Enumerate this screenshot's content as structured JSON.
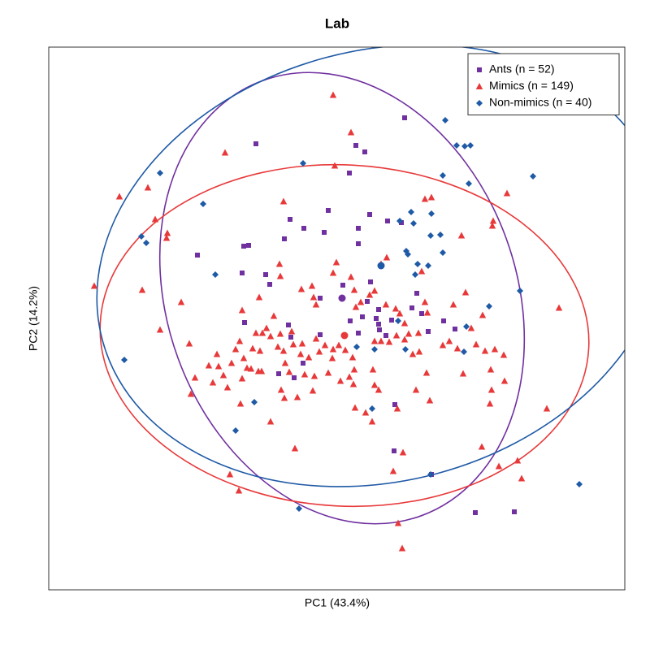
{
  "chart_data": {
    "type": "scatter",
    "title": "Lab",
    "x_label": "PC1 (43.4%)",
    "y_label": "PC2 (14.2%)",
    "xlim": [
      0,
      709
    ],
    "ylim": [
      0,
      668
    ],
    "legend": "top-right",
    "series": [
      {
        "name": "Ants (n = 52)",
        "color": "#7030a0",
        "marker": "square",
        "x": [
          255,
          389,
          370,
          378,
          297,
          290,
          240,
          246,
          183,
          238,
          267,
          272,
          314,
          339,
          344,
          395,
          381,
          381,
          417,
          434,
          438,
          396,
          362,
          392,
          334,
          406,
          406,
          422,
          447,
          371,
          381,
          334,
          407,
          500,
          467,
          295,
          298,
          241,
          313,
          302,
          283,
          425,
          426,
          471,
          525,
          573,
          486,
          415,
          403,
          386,
          459,
          453
        ],
        "y": [
          549,
          539,
          513,
          547,
          456,
          432,
          423,
          424,
          412,
          390,
          388,
          376,
          445,
          440,
          467,
          462,
          445,
          426,
          454,
          452,
          581,
          379,
          375,
          355,
          359,
          345,
          327,
          332,
          347,
          331,
          316,
          314,
          320,
          321,
          318,
          326,
          311,
          329,
          279,
          261,
          266,
          171,
          228,
          142,
          95,
          96,
          331,
          313,
          334,
          336,
          340,
          365
        ],
        "centroid": {
          "x": 361,
          "y": 359
        },
        "ellipse": {
          "rx": 215,
          "ry": 285,
          "angle": 20
        }
      },
      {
        "name": "Mimics (n = 149)",
        "color": "#e8393a",
        "marker": "triangle",
        "x": [
          350,
          372,
          217,
          352,
          122,
          87,
          131,
          146,
          145,
          56,
          115,
          163,
          137,
          173,
          175,
          180,
          197,
          202,
          220,
          225,
          230,
          235,
          240,
          238,
          244,
          249,
          258,
          262,
          260,
          268,
          273,
          282,
          285,
          277,
          259,
          285,
          284,
          289,
          311,
          326,
          329,
          324,
          350,
          354,
          372,
          376,
          378,
          384,
          395,
          401,
          416,
          409,
          415,
          427,
          432,
          438,
          443,
          455,
          463,
          466,
          459,
          463,
          471,
          508,
          513,
          498,
          534,
          547,
          564,
          546,
          628,
          549,
          560,
          544,
          561,
          545,
          543,
          613,
          533,
          577,
          582,
          554,
          223,
          234,
          303,
          273,
          290,
          286,
          296,
          315,
          325,
          327,
          320,
          333,
          340,
          350,
          357,
          365,
          374,
          376,
          370,
          375,
          377,
          390,
          398,
          406,
          401,
          399,
          401,
          409,
          419,
          428,
          438,
          448,
          456,
          465,
          469,
          452,
          429,
          436,
          424,
          430,
          435,
          359,
          349,
          344,
          329,
          312,
          301,
          310,
          299,
          289,
          291,
          207,
          209,
          236,
          215,
          251,
          255,
          263,
          306,
          238,
          485,
          493,
          520,
          503,
          526,
          537,
          510
        ],
        "y": [
          609,
          563,
          538,
          522,
          495,
          484,
          456,
          439,
          433,
          374,
          369,
          354,
          320,
          303,
          241,
          261,
          276,
          255,
          249,
          279,
          296,
          306,
          285,
          260,
          273,
          272,
          269,
          269,
          294,
          322,
          312,
          299,
          315,
          337,
          360,
          386,
          401,
          478,
          370,
          360,
          351,
          374,
          390,
          403,
          385,
          369,
          348,
          354,
          363,
          368,
          409,
          401,
          351,
          346,
          340,
          328,
          315,
          316,
          354,
          341,
          392,
          481,
          483,
          436,
          366,
          351,
          338,
          454,
          488,
          448,
          347,
          296,
          289,
          271,
          257,
          246,
          229,
          223,
          176,
          159,
          137,
          152,
          142,
          122,
          174,
          207,
          236,
          246,
          268,
          265,
          245,
          263,
          286,
          293,
          301,
          296,
          301,
          295,
          286,
          271,
          262,
          253,
          224,
          218,
          207,
          246,
          252,
          271,
          306,
          306,
          305,
          313,
          308,
          290,
          293,
          267,
          233,
          246,
          223,
          169,
          146,
          82,
          51,
          257,
          285,
          267,
          309,
          303,
          302,
          290,
          318,
          294,
          279,
          290,
          275,
          229,
          264,
          297,
          316,
          316,
          237,
          344,
          301,
          306,
          322,
          297,
          302,
          294,
          266
        ],
        "centroid": {
          "x": 364,
          "y": 313
        },
        "ellipse": {
          "rx": 301,
          "ry": 210,
          "angle": -3
        }
      },
      {
        "name": "Non-mimics (n = 40)",
        "color": "#1f5aa6",
        "marker": "diamond",
        "x": [
          488,
          502,
          512,
          519,
          596,
          485,
          313,
          137,
          190,
          114,
          120,
          205,
          432,
          446,
          449,
          471,
          470,
          482,
          440,
          442,
          454,
          451,
          467,
          485,
          517,
          580,
          542,
          514,
          511,
          379,
          401,
          439,
          398,
          253,
          93,
          230,
          470,
          653,
          308,
          430
        ],
        "y": [
          578,
          547,
          546,
          547,
          509,
          510,
          525,
          513,
          475,
          435,
          427,
          388,
          454,
          465,
          451,
          463,
          436,
          437,
          417,
          413,
          401,
          388,
          399,
          415,
          500,
          368,
          349,
          324,
          293,
          299,
          296,
          296,
          223,
          231,
          283,
          196,
          142,
          130,
          100,
          331
        ],
        "centroid": {
          "x": 409,
          "y": 399
        },
        "ellipse": {
          "rx": 355,
          "ry": 265,
          "angle": 15
        }
      }
    ]
  }
}
